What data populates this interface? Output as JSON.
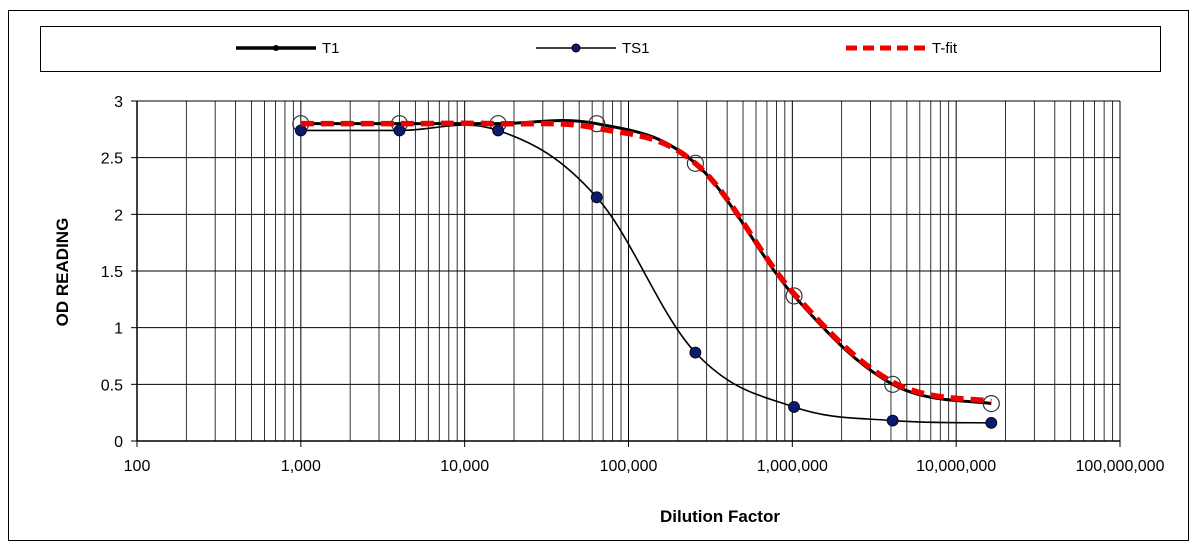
{
  "chart_data": {
    "type": "line",
    "xscale": "log",
    "xlim": [
      100,
      100000000
    ],
    "ylim": [
      0,
      3
    ],
    "xlabel": "Dilution Factor",
    "ylabel": "OD READING",
    "x_tick_labels": [
      "100",
      "1,000",
      "10,000",
      "100,000",
      "1,000,000",
      "10,000,000",
      "100,000,000"
    ],
    "y_tick_labels": [
      "0",
      "0.5",
      "1",
      "1.5",
      "2",
      "2.5",
      "3"
    ],
    "grid": true,
    "legend_placement": "top",
    "series": [
      {
        "name": "T1",
        "color": "#000000",
        "x": [
          1000,
          4000,
          16000,
          64000,
          256000,
          1024000,
          4096000,
          16384000
        ],
        "y": [
          2.8,
          2.8,
          2.8,
          2.8,
          2.45,
          1.28,
          0.5,
          0.33
        ]
      },
      {
        "name": "TS1",
        "color": "#0a1a6e",
        "x": [
          1000,
          4000,
          16000,
          64000,
          256000,
          1024000,
          4096000,
          16384000
        ],
        "y": [
          2.74,
          2.74,
          2.74,
          2.15,
          0.78,
          0.3,
          0.18,
          0.16
        ]
      },
      {
        "name": "T-fit",
        "color": "#ee0000",
        "x": [
          1000,
          4000,
          16000,
          64000,
          256000,
          1024000,
          4096000,
          16384000
        ],
        "y": [
          2.8,
          2.8,
          2.8,
          2.76,
          2.45,
          1.3,
          0.52,
          0.35
        ]
      }
    ]
  }
}
